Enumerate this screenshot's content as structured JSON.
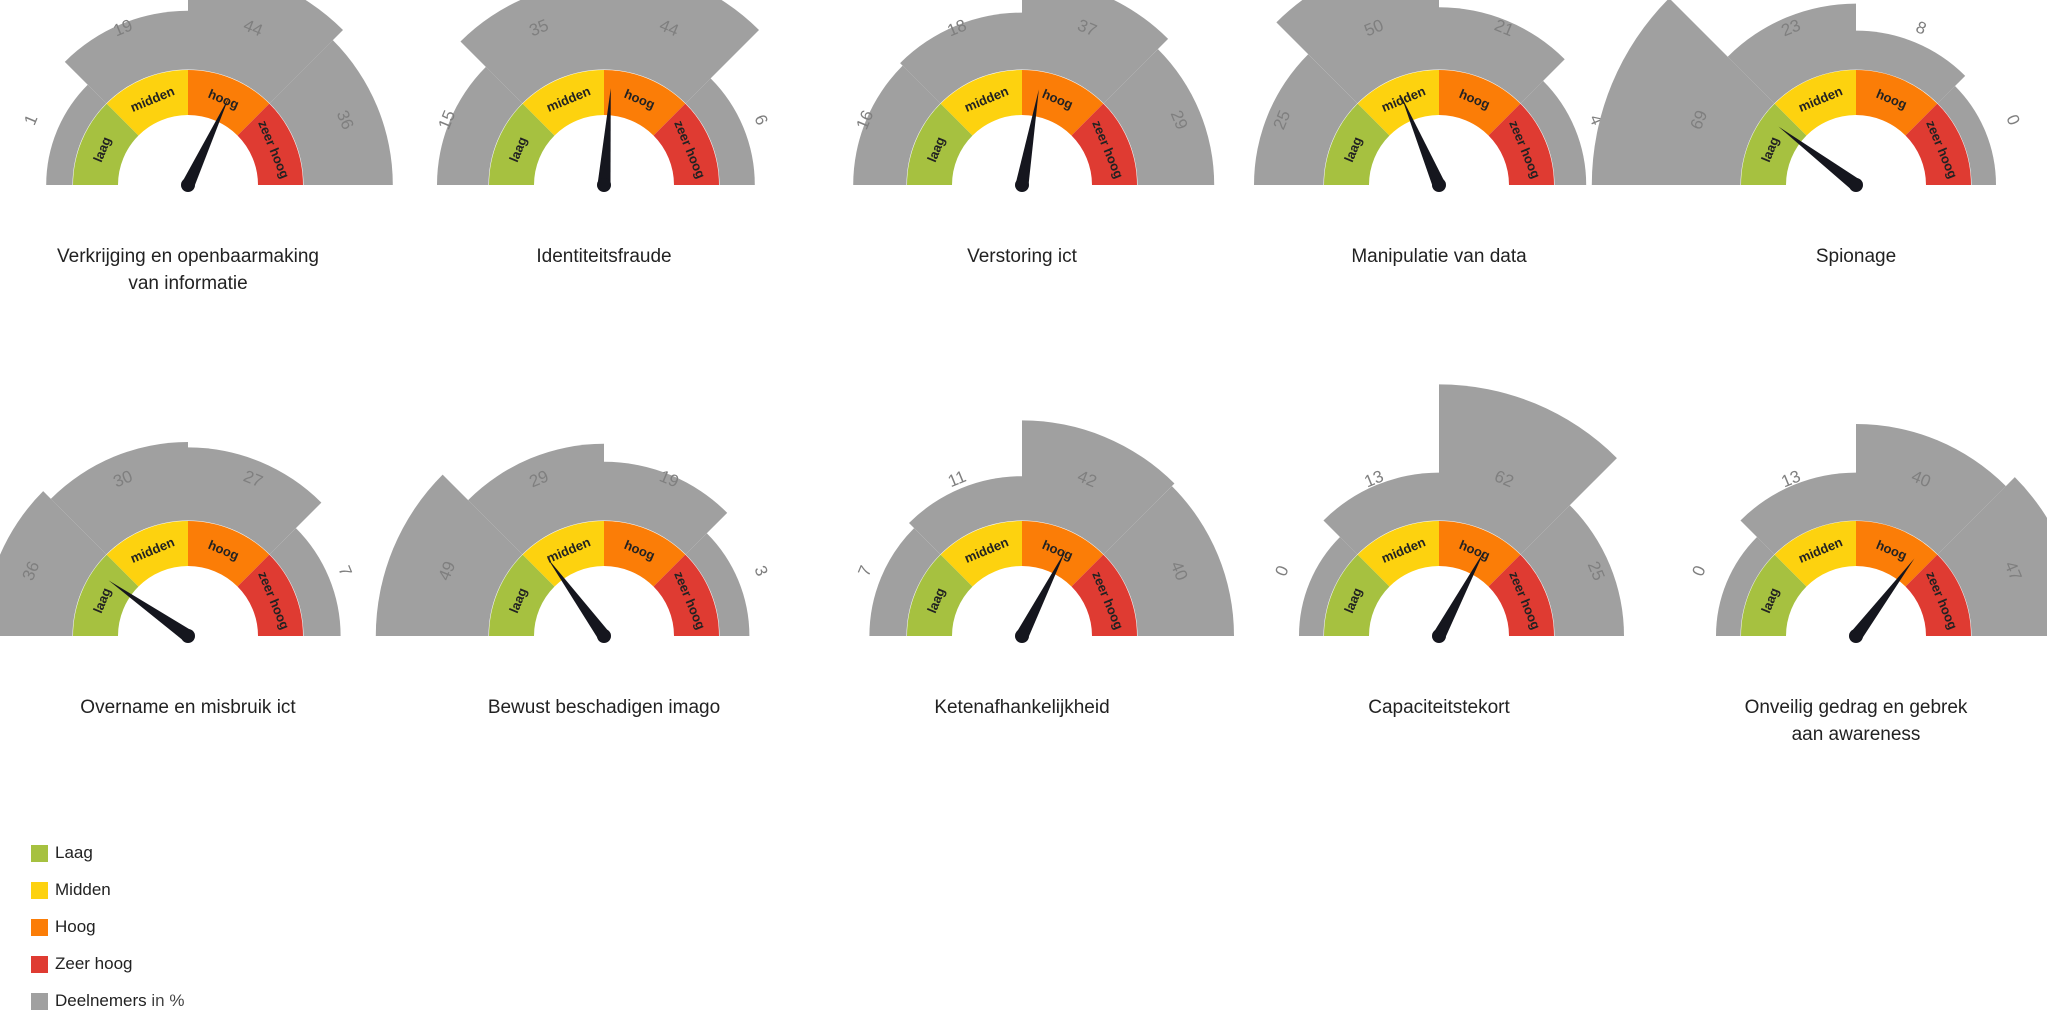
{
  "colors": {
    "laag": "#a6c140",
    "midden": "#fdd20f",
    "hoog": "#fb7d07",
    "zeer_hoog": "#df3b32",
    "deelnemers": "#a0a0a0",
    "needle": "#15161e",
    "value_label": "#7f7f7f"
  },
  "segment_labels": [
    "laag",
    "midden",
    "hoog",
    "zeer hoog"
  ],
  "legend": [
    {
      "key": "laag",
      "label": "Laag",
      "suffix": ""
    },
    {
      "key": "midden",
      "label": "Midden",
      "suffix": ""
    },
    {
      "key": "hoog",
      "label": "Hoog",
      "suffix": ""
    },
    {
      "key": "zeer_hoog",
      "label": "Zeer hoog",
      "suffix": ""
    },
    {
      "key": "deelnemers",
      "label": "Deelnemers",
      "suffix": " in %"
    }
  ],
  "chart_data": [
    {
      "type": "gauge",
      "title": [
        "Verkrijging en openbaarmaking",
        "van informatie"
      ],
      "categories": [
        "laag",
        "midden",
        "hoog",
        "zeer hoog"
      ],
      "values": [
        1,
        19,
        44,
        36
      ],
      "needle_angle_deg": 65
    },
    {
      "type": "gauge",
      "title": [
        "Identiteitsfraude"
      ],
      "categories": [
        "laag",
        "midden",
        "hoog",
        "zeer hoog"
      ],
      "values": [
        15,
        35,
        44,
        6
      ],
      "needle_angle_deg": 86
    },
    {
      "type": "gauge",
      "title": [
        "Verstoring ict"
      ],
      "categories": [
        "laag",
        "midden",
        "hoog",
        "zeer hoog"
      ],
      "values": [
        16,
        18,
        37,
        29
      ],
      "needle_angle_deg": 80
    },
    {
      "type": "gauge",
      "title": [
        "Manipulatie van data"
      ],
      "categories": [
        "laag",
        "midden",
        "hoog",
        "zeer hoog"
      ],
      "values": [
        25,
        50,
        21,
        4
      ],
      "needle_angle_deg": 113
    },
    {
      "type": "gauge",
      "title": [
        "Spionage"
      ],
      "categories": [
        "laag",
        "midden",
        "hoog",
        "zeer hoog"
      ],
      "values": [
        69,
        23,
        8,
        0
      ],
      "needle_angle_deg": 143
    },
    {
      "type": "gauge",
      "title": [
        "Overname en misbruik ict"
      ],
      "categories": [
        "laag",
        "midden",
        "hoog",
        "zeer hoog"
      ],
      "values": [
        36,
        30,
        27,
        7
      ],
      "needle_angle_deg": 145
    },
    {
      "type": "gauge",
      "title": [
        "Bewust beschadigen imago"
      ],
      "categories": [
        "laag",
        "midden",
        "hoog",
        "zeer hoog"
      ],
      "values": [
        49,
        29,
        19,
        3
      ],
      "needle_angle_deg": 126
    },
    {
      "type": "gauge",
      "title": [
        "Ketenafhankelijkheid"
      ],
      "categories": [
        "laag",
        "midden",
        "hoog",
        "zeer hoog"
      ],
      "values": [
        7,
        11,
        42,
        40
      ],
      "needle_angle_deg": 63
    },
    {
      "type": "gauge",
      "title": [
        "Capaciteitstekort"
      ],
      "categories": [
        "laag",
        "midden",
        "hoog",
        "zeer hoog"
      ],
      "values": [
        0,
        13,
        62,
        25
      ],
      "needle_angle_deg": 62
    },
    {
      "type": "gauge",
      "title": [
        "Onveilig gedrag en gebrek",
        "aan awareness"
      ],
      "categories": [
        "laag",
        "midden",
        "hoog",
        "zeer hoog"
      ],
      "values": [
        0,
        13,
        40,
        47
      ],
      "needle_angle_deg": 53
    }
  ]
}
